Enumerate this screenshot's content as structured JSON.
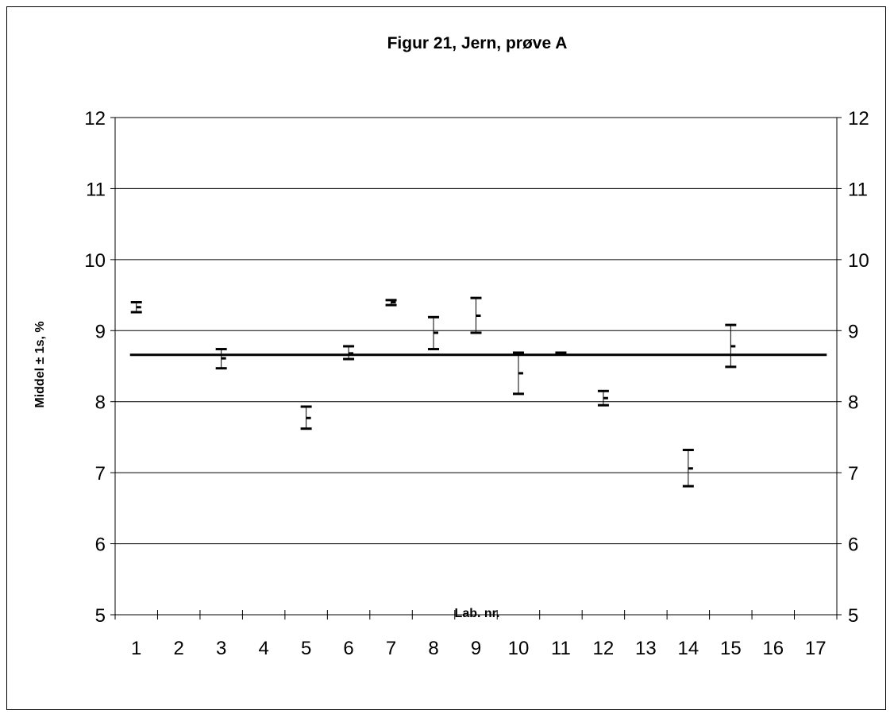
{
  "chart_data": {
    "type": "scatter",
    "title": "Figur 21, Jern, prøve A",
    "xlabel": "Lab. nr.",
    "ylabel": "Middel ± 1s, %",
    "ylim": [
      5,
      12
    ],
    "yticks": [
      "5",
      "6",
      "7",
      "8",
      "9",
      "10",
      "11",
      "12"
    ],
    "categories": [
      "1",
      "2",
      "3",
      "4",
      "5",
      "6",
      "7",
      "8",
      "9",
      "10",
      "11",
      "12",
      "13",
      "14",
      "15",
      "16",
      "17"
    ],
    "grid": "horizontal",
    "reference_line": 8.66,
    "points": [
      {
        "lab": "1",
        "mean": 9.33,
        "low": 9.26,
        "high": 9.4
      },
      {
        "lab": "3",
        "mean": 8.61,
        "low": 8.47,
        "high": 8.74
      },
      {
        "lab": "5",
        "mean": 7.77,
        "low": 7.62,
        "high": 7.93
      },
      {
        "lab": "6",
        "mean": 8.68,
        "low": 8.6,
        "high": 8.78
      },
      {
        "lab": "7",
        "mean": 9.4,
        "low": 9.36,
        "high": 9.43
      },
      {
        "lab": "8",
        "mean": 8.97,
        "low": 8.74,
        "high": 9.19
      },
      {
        "lab": "9",
        "mean": 9.21,
        "low": 8.97,
        "high": 9.46
      },
      {
        "lab": "10",
        "mean": 8.4,
        "low": 8.11,
        "high": 8.69
      },
      {
        "lab": "11",
        "mean": 8.68,
        "low": 8.67,
        "high": 8.69
      },
      {
        "lab": "12",
        "mean": 8.05,
        "low": 7.95,
        "high": 8.15
      },
      {
        "lab": "14",
        "mean": 7.06,
        "low": 6.81,
        "high": 7.32
      },
      {
        "lab": "15",
        "mean": 8.78,
        "low": 8.49,
        "high": 9.08
      }
    ]
  }
}
